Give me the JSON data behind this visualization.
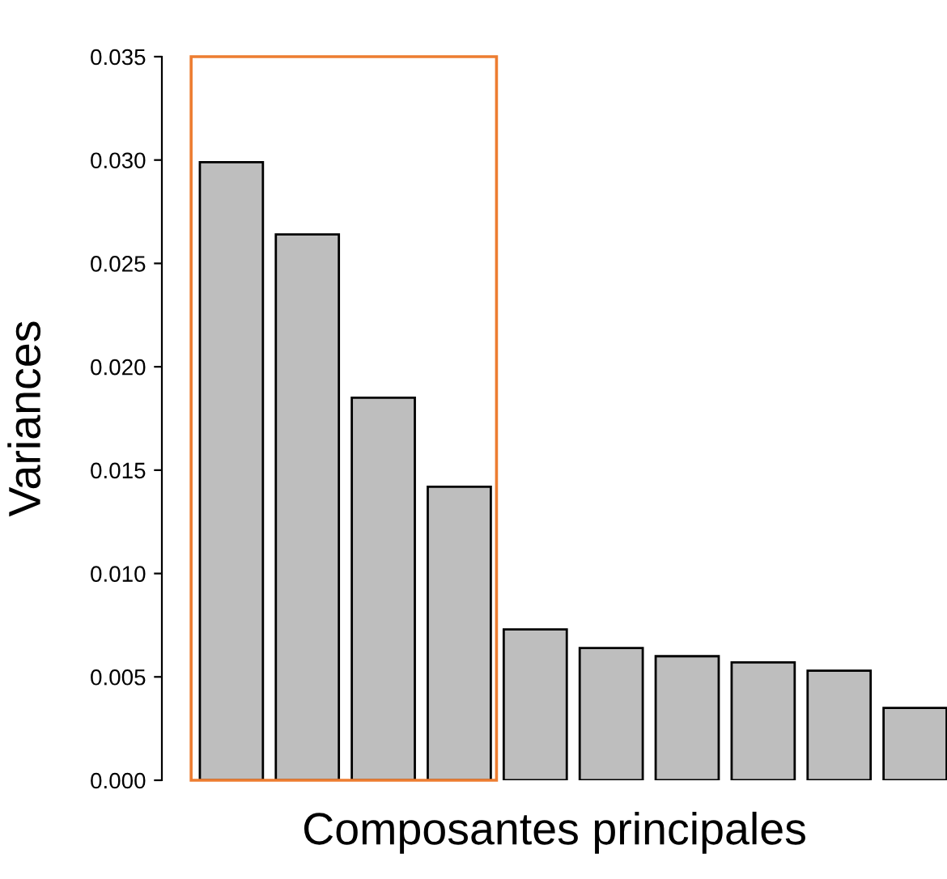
{
  "chart_data": {
    "type": "bar",
    "xlabel": "Composantes principales",
    "ylabel": "Variances",
    "categories": [
      null,
      null,
      null,
      null,
      null,
      null,
      null,
      null,
      null,
      null
    ],
    "values": [
      0.0299,
      0.0264,
      0.0185,
      0.0142,
      0.0073,
      0.0064,
      0.006,
      0.0057,
      0.0053,
      0.0035
    ],
    "color": "#bebebe",
    "ylim": [
      0,
      0.035
    ],
    "yticks": [
      {
        "value": 0,
        "label": "0.000"
      },
      {
        "value": 0.005,
        "label": "0.005"
      },
      {
        "value": 0.01,
        "label": "0.010"
      },
      {
        "value": 0.015,
        "label": "0.015"
      },
      {
        "value": 0.02,
        "label": "0.020"
      },
      {
        "value": 0.025,
        "label": "0.025"
      },
      {
        "value": 0.03,
        "label": "0.030"
      },
      {
        "value": 0.035,
        "label": "0.035"
      }
    ],
    "tick_labels": "y",
    "grid": false
  }
}
